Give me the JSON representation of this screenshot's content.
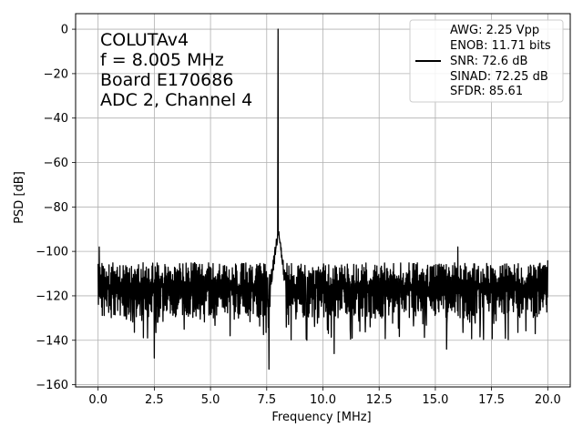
{
  "chart_data": {
    "type": "line",
    "xlabel": "Frequency [MHz]",
    "ylabel": "PSD [dB]",
    "xlim": [
      -1.0,
      21.0
    ],
    "ylim": [
      -161,
      7
    ],
    "xticks": [
      0.0,
      2.5,
      5.0,
      7.5,
      10.0,
      12.5,
      15.0,
      17.5,
      20.0
    ],
    "xtick_labels": [
      "0.0",
      "2.5",
      "5.0",
      "7.5",
      "10.0",
      "12.5",
      "15.0",
      "17.5",
      "20.0"
    ],
    "yticks": [
      0,
      -20,
      -40,
      -60,
      -80,
      -100,
      -120,
      -140,
      -160
    ],
    "ytick_labels": [
      "0",
      "−20",
      "−40",
      "−60",
      "−80",
      "−100",
      "−120",
      "−140",
      "−160"
    ],
    "grid": true,
    "line_color": "#000000",
    "annotation_lines": [
      "COLUTAv4",
      "f = 8.005 MHz",
      "Board E170686",
      "ADC 2, Channel 4"
    ],
    "legend": {
      "placement": "top-right",
      "lines": [
        "AWG: 2.25 Vpp",
        "ENOB: 11.71 bits",
        "SNR: 72.6 dB",
        "SINAD: 72.25 dB",
        "SFDR: 85.61"
      ]
    },
    "series": [
      {
        "noise_floor_db": -116,
        "noise_upper_db": -105,
        "noise_lower_db": -130,
        "peaks": [
          {
            "x": 0.05,
            "y": -98
          },
          {
            "x": 8.005,
            "y": 0
          },
          {
            "x": 7.6,
            "y": -153
          },
          {
            "x": 2.5,
            "y": -148
          },
          {
            "x": 10.5,
            "y": -146
          },
          {
            "x": 15.5,
            "y": -144
          },
          {
            "x": 16.0,
            "y": -98
          },
          {
            "x": 20.0,
            "y": -104
          }
        ],
        "x_range": [
          0.0,
          20.0
        ]
      }
    ]
  }
}
